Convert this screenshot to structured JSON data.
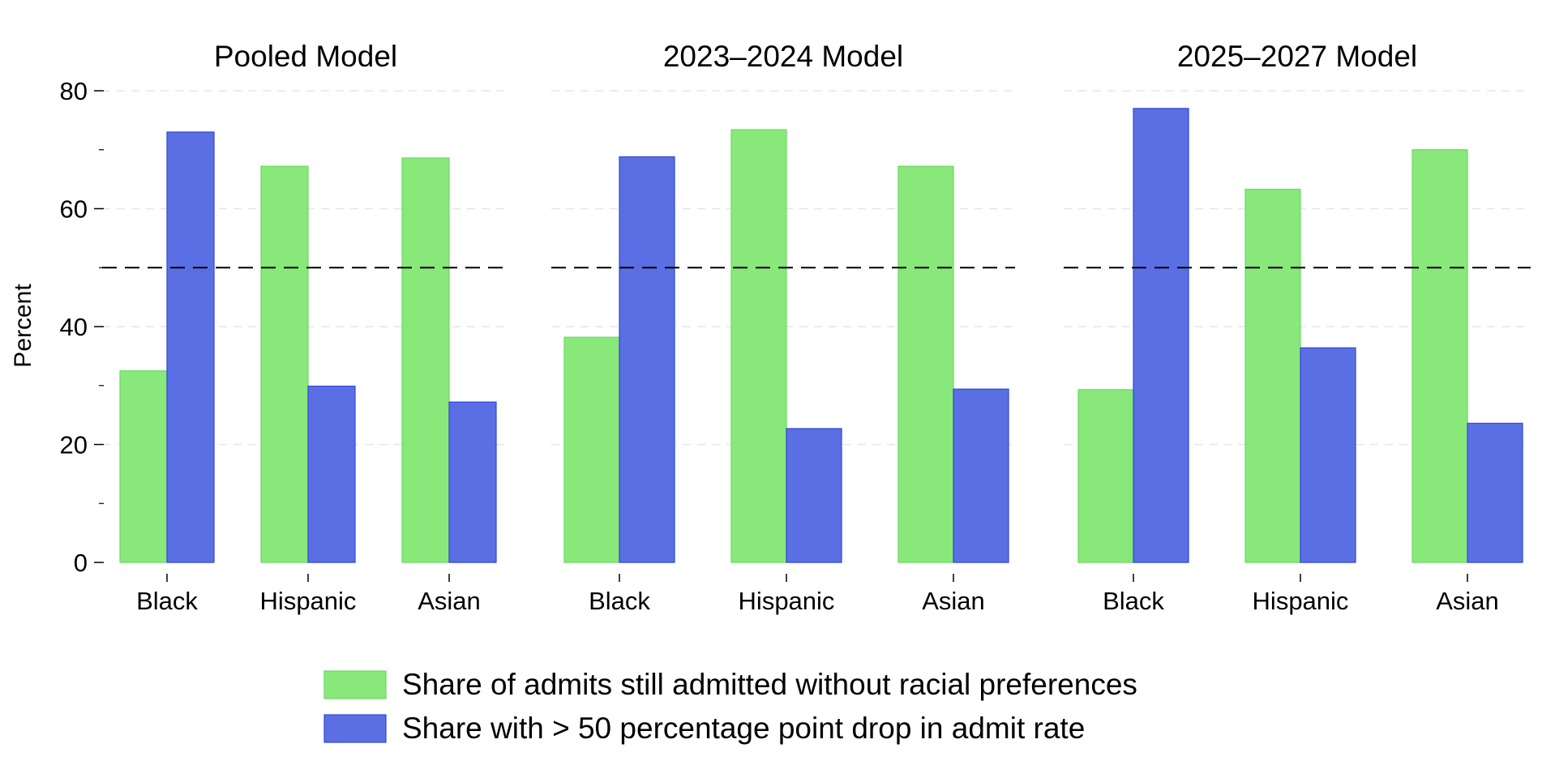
{
  "chart_data": {
    "type": "bar",
    "ylabel": "Percent",
    "ylim": [
      0,
      80
    ],
    "y_ticks": [
      0,
      20,
      40,
      60,
      80
    ],
    "reference_line": 50,
    "grid": true,
    "legend_position": "bottom",
    "colors": {
      "green": "#88E87A",
      "blue": "#5A6FE4",
      "green_edge": "#6FD862",
      "blue_edge": "#3347D6"
    },
    "series_names": [
      "Share of admits still admitted without racial preferences",
      "Share with > 50 percentage point drop in admit rate"
    ],
    "panels": [
      {
        "title": "Pooled Model",
        "categories": [
          "Black",
          "Hispanic",
          "Asian"
        ],
        "series": [
          {
            "values": [
              32.5,
              67.2,
              68.6
            ]
          },
          {
            "values": [
              73.0,
              29.9,
              27.2
            ]
          }
        ]
      },
      {
        "title": "2023–2024 Model",
        "categories": [
          "Black",
          "Hispanic",
          "Asian"
        ],
        "series": [
          {
            "values": [
              38.2,
              73.4,
              67.2
            ]
          },
          {
            "values": [
              68.8,
              22.7,
              29.4
            ]
          }
        ]
      },
      {
        "title": "2025–2027 Model",
        "categories": [
          "Black",
          "Hispanic",
          "Asian"
        ],
        "series": [
          {
            "values": [
              29.3,
              63.3,
              70.0
            ]
          },
          {
            "values": [
              77.0,
              36.4,
              23.6
            ]
          }
        ]
      }
    ]
  }
}
